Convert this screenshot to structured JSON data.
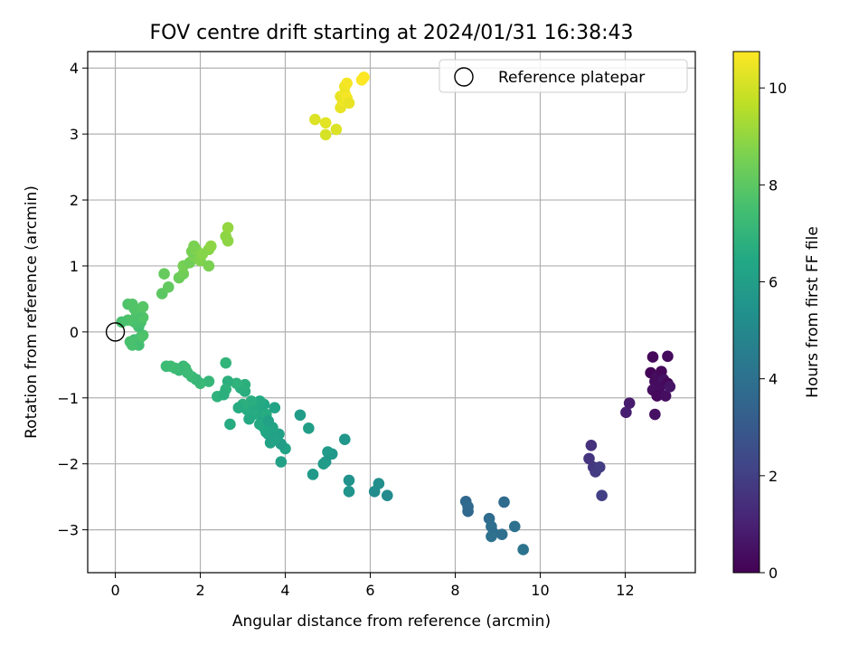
{
  "chart_data": {
    "type": "scatter",
    "title": "FOV centre drift starting at 2024/01/31 16:38:43",
    "xlabel": "Angular distance from reference (arcmin)",
    "ylabel": "Rotation from reference (arcmin)",
    "xlim": [
      -0.65,
      13.65
    ],
    "ylim": [
      -3.65,
      4.25
    ],
    "xticks": [
      0,
      2,
      4,
      6,
      8,
      10,
      12
    ],
    "yticks": [
      -3,
      -2,
      -1,
      0,
      1,
      2,
      3,
      4
    ],
    "grid": true,
    "legend": {
      "placement": "top-right",
      "entries": [
        "Reference platepar"
      ]
    },
    "reference_point": {
      "x": 0,
      "y": 0
    },
    "colorbar": {
      "label": "Hours from first FF file",
      "range": [
        0,
        10.75
      ],
      "ticks": [
        0,
        2,
        4,
        6,
        8,
        10
      ],
      "colormap": "viridis"
    },
    "points": [
      [
        12.65,
        -0.38,
        0.2
      ],
      [
        13.0,
        -0.37,
        0.3
      ],
      [
        12.6,
        -0.62,
        0.1
      ],
      [
        12.75,
        -0.68,
        0.4
      ],
      [
        12.85,
        -0.6,
        0.2
      ],
      [
        12.7,
        -0.75,
        0.3
      ],
      [
        12.9,
        -0.72,
        0.5
      ],
      [
        13.0,
        -0.78,
        0.2
      ],
      [
        12.8,
        -0.85,
        0.3
      ],
      [
        12.65,
        -0.88,
        0.4
      ],
      [
        12.75,
        -0.97,
        0.2
      ],
      [
        12.95,
        -0.97,
        0.4
      ],
      [
        13.05,
        -0.83,
        0.6
      ],
      [
        12.7,
        -1.25,
        0.5
      ],
      [
        12.1,
        -1.08,
        0.8
      ],
      [
        12.02,
        -1.22,
        0.9
      ],
      [
        11.2,
        -1.72,
        1.5
      ],
      [
        11.15,
        -1.92,
        1.6
      ],
      [
        11.25,
        -2.05,
        1.7
      ],
      [
        11.3,
        -2.12,
        1.8
      ],
      [
        11.4,
        -2.05,
        1.9
      ],
      [
        11.45,
        -2.48,
        2.0
      ],
      [
        8.25,
        -2.57,
        3.6
      ],
      [
        8.3,
        -2.65,
        3.7
      ],
      [
        8.3,
        -2.72,
        3.6
      ],
      [
        8.8,
        -2.83,
        3.8
      ],
      [
        8.85,
        -2.95,
        3.9
      ],
      [
        8.9,
        -3.05,
        3.8
      ],
      [
        8.85,
        -3.1,
        4.0
      ],
      [
        9.1,
        -3.07,
        3.9
      ],
      [
        9.15,
        -2.58,
        3.7
      ],
      [
        9.4,
        -2.95,
        4.0
      ],
      [
        9.6,
        -3.3,
        4.1
      ],
      [
        6.1,
        -2.42,
        5.2
      ],
      [
        6.2,
        -2.3,
        5.3
      ],
      [
        6.4,
        -2.48,
        5.1
      ],
      [
        5.5,
        -2.25,
        5.4
      ],
      [
        5.5,
        -2.42,
        5.5
      ],
      [
        5.4,
        -1.63,
        5.6
      ],
      [
        5.1,
        -1.85,
        5.7
      ],
      [
        5.0,
        -1.82,
        5.8
      ],
      [
        4.95,
        -1.97,
        5.7
      ],
      [
        4.9,
        -2.0,
        5.9
      ],
      [
        4.65,
        -2.16,
        5.8
      ],
      [
        4.55,
        -1.46,
        6.0
      ],
      [
        4.35,
        -1.26,
        5.9
      ],
      [
        3.9,
        -1.97,
        6.1
      ],
      [
        4.0,
        -1.77,
        6.2
      ],
      [
        3.9,
        -1.7,
        6.0
      ],
      [
        3.85,
        -1.55,
        6.1
      ],
      [
        3.75,
        -1.62,
        6.2
      ],
      [
        3.7,
        -1.45,
        6.3
      ],
      [
        3.65,
        -1.68,
        6.2
      ],
      [
        3.6,
        -1.55,
        6.1
      ],
      [
        3.55,
        -1.52,
        6.3
      ],
      [
        3.5,
        -1.45,
        6.4
      ],
      [
        3.45,
        -1.35,
        6.3
      ],
      [
        3.4,
        -1.4,
        6.5
      ],
      [
        3.35,
        -1.22,
        6.4
      ],
      [
        3.3,
        -1.15,
        6.5
      ],
      [
        3.5,
        -1.1,
        6.4
      ],
      [
        3.55,
        -1.25,
        6.6
      ],
      [
        3.4,
        -1.05,
        6.5
      ],
      [
        3.25,
        -1.25,
        6.6
      ],
      [
        3.2,
        -1.05,
        6.7
      ],
      [
        3.15,
        -1.32,
        6.5
      ],
      [
        3.1,
        -1.18,
        6.6
      ],
      [
        3.05,
        -0.9,
        6.7
      ],
      [
        3.0,
        -1.1,
        6.8
      ],
      [
        2.9,
        -1.15,
        6.6
      ],
      [
        2.95,
        -0.85,
        6.7
      ],
      [
        3.05,
        -0.8,
        6.8
      ],
      [
        2.85,
        -0.78,
        6.9
      ],
      [
        2.65,
        -0.75,
        6.8
      ],
      [
        2.6,
        -0.87,
        6.9
      ],
      [
        2.7,
        -1.4,
        6.6
      ],
      [
        2.6,
        -0.47,
        7.0
      ],
      [
        2.4,
        -0.98,
        6.9
      ],
      [
        2.55,
        -0.95,
        6.8
      ],
      [
        3.75,
        -1.15,
        6.2
      ],
      [
        3.6,
        -1.35,
        6.1
      ],
      [
        2.2,
        -0.75,
        7.1
      ],
      [
        2.0,
        -0.78,
        7.2
      ],
      [
        1.9,
        -0.72,
        7.1
      ],
      [
        1.8,
        -0.68,
        7.2
      ],
      [
        1.7,
        -0.62,
        7.3
      ],
      [
        1.6,
        -0.52,
        7.2
      ],
      [
        1.65,
        -0.55,
        7.3
      ],
      [
        1.5,
        -0.58,
        7.2
      ],
      [
        1.4,
        -0.55,
        7.3
      ],
      [
        1.3,
        -0.52,
        7.4
      ],
      [
        1.2,
        -0.52,
        7.3
      ],
      [
        0.55,
        -0.2,
        7.5
      ],
      [
        0.4,
        -0.2,
        7.6
      ],
      [
        0.45,
        -0.12,
        7.5
      ],
      [
        0.6,
        -0.08,
        7.6
      ],
      [
        0.65,
        -0.05,
        7.7
      ],
      [
        0.35,
        -0.15,
        7.6
      ],
      [
        0.55,
        0.08,
        7.5
      ],
      [
        0.45,
        0.15,
        7.6
      ],
      [
        0.3,
        0.18,
        7.7
      ],
      [
        0.15,
        0.15,
        7.6
      ],
      [
        0.5,
        0.25,
        7.7
      ],
      [
        0.6,
        0.15,
        7.6
      ],
      [
        0.65,
        0.22,
        7.8
      ],
      [
        0.55,
        0.3,
        7.7
      ],
      [
        0.45,
        0.35,
        7.8
      ],
      [
        0.3,
        0.42,
        7.7
      ],
      [
        0.4,
        0.42,
        7.8
      ],
      [
        0.65,
        0.38,
        7.9
      ],
      [
        1.1,
        0.58,
        8.0
      ],
      [
        1.25,
        0.68,
        8.1
      ],
      [
        1.15,
        0.88,
        8.2
      ],
      [
        1.5,
        0.82,
        8.3
      ],
      [
        1.6,
        0.88,
        8.4
      ],
      [
        1.6,
        1.0,
        8.5
      ],
      [
        1.75,
        1.05,
        8.4
      ],
      [
        1.85,
        1.15,
        8.6
      ],
      [
        1.8,
        1.22,
        8.5
      ],
      [
        1.9,
        1.25,
        8.7
      ],
      [
        1.85,
        1.3,
        8.6
      ],
      [
        2.0,
        1.08,
        8.7
      ],
      [
        2.05,
        1.18,
        8.8
      ],
      [
        2.2,
        1.0,
        8.6
      ],
      [
        2.2,
        1.25,
        8.8
      ],
      [
        2.25,
        1.3,
        8.9
      ],
      [
        2.6,
        1.45,
        8.9
      ],
      [
        2.65,
        1.58,
        9.0
      ],
      [
        2.65,
        1.38,
        8.9
      ],
      [
        4.7,
        3.22,
        10.2
      ],
      [
        4.95,
        3.17,
        10.3
      ],
      [
        4.95,
        2.99,
        10.1
      ],
      [
        5.2,
        3.07,
        10.2
      ],
      [
        5.3,
        3.4,
        10.4
      ],
      [
        5.35,
        3.5,
        10.5
      ],
      [
        5.3,
        3.57,
        10.4
      ],
      [
        5.4,
        3.62,
        10.5
      ],
      [
        5.45,
        3.55,
        10.6
      ],
      [
        5.4,
        3.72,
        10.5
      ],
      [
        5.45,
        3.77,
        10.6
      ],
      [
        5.5,
        3.47,
        10.4
      ],
      [
        5.8,
        3.82,
        10.7
      ],
      [
        5.85,
        3.86,
        10.75
      ]
    ]
  }
}
